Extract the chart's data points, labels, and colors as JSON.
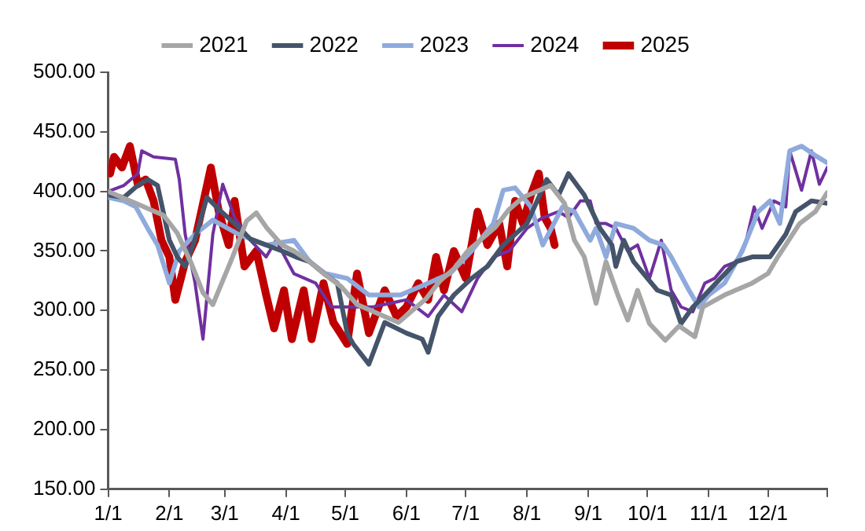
{
  "chart_data": {
    "type": "line",
    "legend": "top",
    "grid": false,
    "marker": "none",
    "line_style": "solid",
    "xlim": [
      "--01-01",
      "--12-31"
    ],
    "xticks": [
      {
        "value": "--01-01",
        "label": "1/1"
      },
      {
        "value": "--02-01",
        "label": "2/1"
      },
      {
        "value": "--03-01",
        "label": "3/1"
      },
      {
        "value": "--04-01",
        "label": "4/1"
      },
      {
        "value": "--05-01",
        "label": "5/1"
      },
      {
        "value": "--06-01",
        "label": "6/1"
      },
      {
        "value": "--07-01",
        "label": "7/1"
      },
      {
        "value": "--08-01",
        "label": "8/1"
      },
      {
        "value": "--09-01",
        "label": "9/1"
      },
      {
        "value": "--10-01",
        "label": "10/1"
      },
      {
        "value": "--11-01",
        "label": "11/1"
      },
      {
        "value": "--12-01",
        "label": "12/1"
      },
      {
        "value": "--12-31",
        "label": null
      }
    ],
    "ylim": [
      150,
      500
    ],
    "yticks": [
      {
        "value": 150,
        "label": "150.00"
      },
      {
        "value": 200,
        "label": "200.00"
      },
      {
        "value": 250,
        "label": "250.00"
      },
      {
        "value": 300,
        "label": "300.00"
      },
      {
        "value": 350,
        "label": "350.00"
      },
      {
        "value": 400,
        "label": "400.00"
      },
      {
        "value": 450,
        "label": "450.00"
      },
      {
        "value": 500,
        "label": "500.00"
      }
    ],
    "series": [
      {
        "name": "2021",
        "color": "#a6a6a6",
        "x": [
          "--01-01",
          "--01-08",
          "--01-15",
          "--01-22",
          "--01-29",
          "--02-05",
          "--02-12",
          "--02-18",
          "--02-23",
          "--02-28",
          "--03-05",
          "--03-12",
          "--03-17",
          "--03-22",
          "--03-30",
          "--04-05",
          "--04-13",
          "--04-21",
          "--04-29",
          "--05-07",
          "--05-14",
          "--05-21",
          "--05-28",
          "--06-04",
          "--06-11",
          "--06-18",
          "--06-25",
          "--07-02",
          "--07-09",
          "--07-16",
          "--07-23",
          "--07-30",
          "--08-06",
          "--08-13",
          "--08-20",
          "--08-25",
          "--08-30",
          "--09-05",
          "--09-10",
          "--09-16",
          "--09-21",
          "--09-26",
          "--10-02",
          "--10-10",
          "--10-17",
          "--10-25",
          "--10-29",
          "--11-09",
          "--11-23",
          "--12-01",
          "--12-06",
          "--12-17",
          "--12-25",
          "--12-31"
        ],
        "values": [
          400,
          395,
          390,
          385,
          380,
          365,
          340,
          315,
          305,
          325,
          345,
          375,
          382,
          370,
          355,
          350,
          341,
          330,
          320,
          305,
          300,
          295,
          290,
          300,
          310,
          325,
          335,
          350,
          360,
          370,
          385,
          395,
          400,
          405,
          390,
          359,
          345,
          306,
          341,
          313,
          292,
          317,
          289,
          275,
          287,
          278,
          303,
          313,
          323,
          331,
          345,
          373,
          383,
          399
        ]
      },
      {
        "name": "2022",
        "color": "#44546a",
        "x": [
          "--01-01",
          "--01-09",
          "--01-16",
          "--01-21",
          "--01-26",
          "--02-01",
          "--02-05",
          "--02-09",
          "--02-14",
          "--02-20",
          "--02-26",
          "--03-06",
          "--03-14",
          "--03-22",
          "--03-30",
          "--04-06",
          "--04-13",
          "--04-21",
          "--04-27",
          "--05-02",
          "--05-05",
          "--05-13",
          "--05-21",
          "--06-01",
          "--06-09",
          "--06-12",
          "--06-17",
          "--06-25",
          "--07-04",
          "--07-12",
          "--07-20",
          "--08-01",
          "--08-11",
          "--08-17",
          "--08-22",
          "--08-30",
          "--09-07",
          "--09-13",
          "--09-15",
          "--09-19",
          "--09-24",
          "--09-29",
          "--10-06",
          "--10-13",
          "--10-18",
          "--10-24",
          "--10-30",
          "--11-07",
          "--11-15",
          "--11-23",
          "--12-02",
          "--12-10",
          "--12-15",
          "--12-23",
          "--12-31"
        ],
        "values": [
          397,
          395,
          405,
          410,
          405,
          359,
          345,
          337,
          360,
          395,
          385,
          373,
          360,
          355,
          350,
          345,
          341,
          330,
          323,
          281,
          272,
          255,
          290,
          281,
          276,
          265,
          295,
          313,
          327,
          337,
          355,
          373,
          410,
          397,
          415,
          397,
          369,
          355,
          337,
          359,
          341,
          331,
          317,
          313,
          289,
          303,
          313,
          327,
          341,
          345,
          345,
          364,
          383,
          392,
          390
        ]
      },
      {
        "name": "2023",
        "color": "#8faadc",
        "x": [
          "--01-01",
          "--01-09",
          "--01-15",
          "--01-21",
          "--01-26",
          "--02-01",
          "--02-06",
          "--02-14",
          "--02-23",
          "--03-08",
          "--03-22",
          "--04-05",
          "--04-13",
          "--04-21",
          "--05-02",
          "--05-13",
          "--05-29",
          "--06-12",
          "--06-23",
          "--07-04",
          "--07-15",
          "--07-20",
          "--07-26",
          "--08-03",
          "--08-09",
          "--08-19",
          "--08-25",
          "--09-02",
          "--09-05",
          "--09-10",
          "--09-15",
          "--09-24",
          "--10-02",
          "--10-09",
          "--10-13",
          "--10-22",
          "--10-27",
          "--11-01",
          "--11-09",
          "--11-18",
          "--11-26",
          "--12-02",
          "--12-07",
          "--12-12",
          "--12-18",
          "--12-26",
          "--12-31"
        ],
        "values": [
          395,
          392,
          387,
          369,
          355,
          323,
          350,
          364,
          376,
          364,
          355,
          359,
          341,
          331,
          327,
          313,
          313,
          323,
          331,
          350,
          373,
          401,
          403,
          387,
          355,
          387,
          383,
          359,
          369,
          345,
          373,
          369,
          359,
          355,
          345,
          317,
          303,
          313,
          323,
          350,
          383,
          392,
          373,
          434,
          438,
          429,
          424
        ]
      },
      {
        "name": "2024",
        "color": "#7030a0",
        "x": [
          "--01-01",
          "--01-09",
          "--01-16",
          "--01-18",
          "--01-24",
          "--02-04",
          "--02-06",
          "--02-09",
          "--02-14",
          "--02-18",
          "--02-23",
          "--02-28",
          "--03-06",
          "--03-14",
          "--03-22",
          "--03-27",
          "--04-05",
          "--04-16",
          "--04-24",
          "--05-02",
          "--05-15",
          "--06-01",
          "--06-12",
          "--06-20",
          "--06-29",
          "--07-07",
          "--07-15",
          "--07-23",
          "--08-01",
          "--08-09",
          "--08-17",
          "--08-22",
          "--08-28",
          "--09-02",
          "--09-05",
          "--09-10",
          "--09-15",
          "--09-21",
          "--09-26",
          "--10-02",
          "--10-08",
          "--10-13",
          "--10-18",
          "--10-24",
          "--10-30",
          "--11-04",
          "--11-09",
          "--11-15",
          "--11-20",
          "--11-24",
          "--11-28",
          "--12-04",
          "--12-10",
          "--12-12",
          "--12-18",
          "--12-23",
          "--12-27",
          "--12-31"
        ],
        "values": [
          400,
          405,
          415,
          434,
          429,
          427,
          410,
          364,
          323,
          276,
          364,
          406,
          378,
          359,
          345,
          359,
          331,
          323,
          303,
          303,
          303,
          309,
          295,
          313,
          299,
          327,
          345,
          350,
          369,
          378,
          383,
          378,
          392,
          392,
          373,
          373,
          369,
          350,
          355,
          327,
          359,
          317,
          303,
          299,
          323,
          327,
          337,
          341,
          359,
          387,
          369,
          392,
          387,
          434,
          401,
          434,
          406,
          420
        ]
      },
      {
        "name": "2025",
        "color": "#c00000",
        "x": [
          "--01-02",
          "--01-04",
          "--01-08",
          "--01-12",
          "--01-16",
          "--01-20",
          "--01-24",
          "--01-28",
          "--02-01",
          "--02-04",
          "--02-09",
          "--02-14",
          "--02-22",
          "--02-26",
          "--03-03",
          "--03-06",
          "--03-11",
          "--03-17",
          "--03-22",
          "--03-26",
          "--03-31",
          "--04-04",
          "--04-10",
          "--04-14",
          "--04-20",
          "--04-25",
          "--04-27",
          "--05-02",
          "--05-07",
          "--05-13",
          "--05-21",
          "--05-27",
          "--06-01",
          "--06-07",
          "--06-12",
          "--06-16",
          "--06-20",
          "--06-25",
          "--07-01",
          "--07-07",
          "--07-12",
          "--07-18",
          "--07-22",
          "--07-26",
          "--07-30",
          "--08-03",
          "--08-07",
          "--08-10",
          "--08-13",
          "--08-15"
        ],
        "values": [
          415,
          429,
          420,
          438,
          406,
          410,
          392,
          359,
          345,
          309,
          341,
          359,
          420,
          383,
          355,
          392,
          337,
          350,
          313,
          285,
          317,
          276,
          317,
          276,
          323,
          290,
          285,
          272,
          331,
          281,
          317,
          295,
          303,
          323,
          309,
          345,
          317,
          350,
          327,
          383,
          355,
          373,
          337,
          392,
          373,
          397,
          415,
          378,
          369,
          355
        ]
      }
    ]
  }
}
